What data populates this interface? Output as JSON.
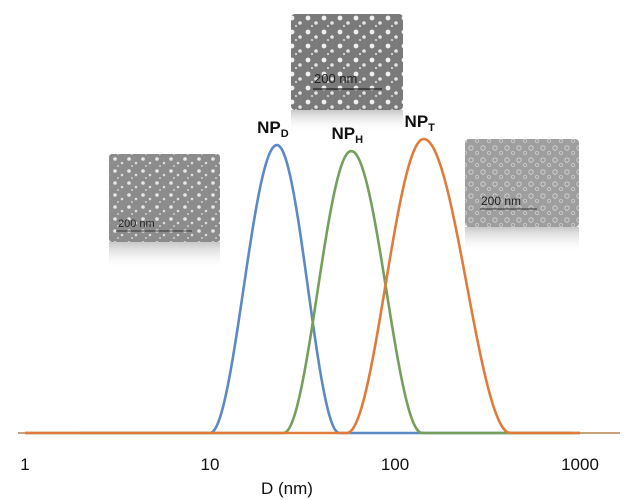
{
  "chart_data": {
    "type": "line",
    "title": "",
    "xlabel": "D (nm)",
    "ylabel": "",
    "x_scale": "log",
    "xlim": [
      1,
      1000
    ],
    "ylim": [
      0,
      1
    ],
    "grid": false,
    "legend": "none",
    "x_ticks": [
      1,
      10,
      100,
      1000
    ],
    "x_tick_labels": [
      "1",
      "10",
      "100",
      "1000"
    ],
    "series": [
      {
        "name": "NPD",
        "label_main": "NP",
        "label_sub": "D",
        "color": "#5b8ac4",
        "peak_x": 23,
        "peak_y": 0.96,
        "range": [
          10,
          50
        ],
        "baseline_range": [
          2,
          900
        ]
      },
      {
        "name": "NPH",
        "label_main": "NP",
        "label_sub": "H",
        "color": "#74a05b",
        "peak_x": 58,
        "peak_y": 0.94,
        "range": [
          25,
          140
        ],
        "baseline_range": [
          1,
          1000
        ]
      },
      {
        "name": "NPT",
        "label_main": "NP",
        "label_sub": "T",
        "color": "#e07b3c",
        "peak_x": 143,
        "peak_y": 0.98,
        "range": [
          55,
          420
        ],
        "baseline_range": [
          1,
          1000
        ]
      }
    ],
    "insets": [
      {
        "name": "NPD",
        "scale_label": "200 nm"
      },
      {
        "name": "NPH",
        "scale_label": "200 nm"
      },
      {
        "name": "NPT",
        "scale_label": "200 nm"
      }
    ]
  }
}
